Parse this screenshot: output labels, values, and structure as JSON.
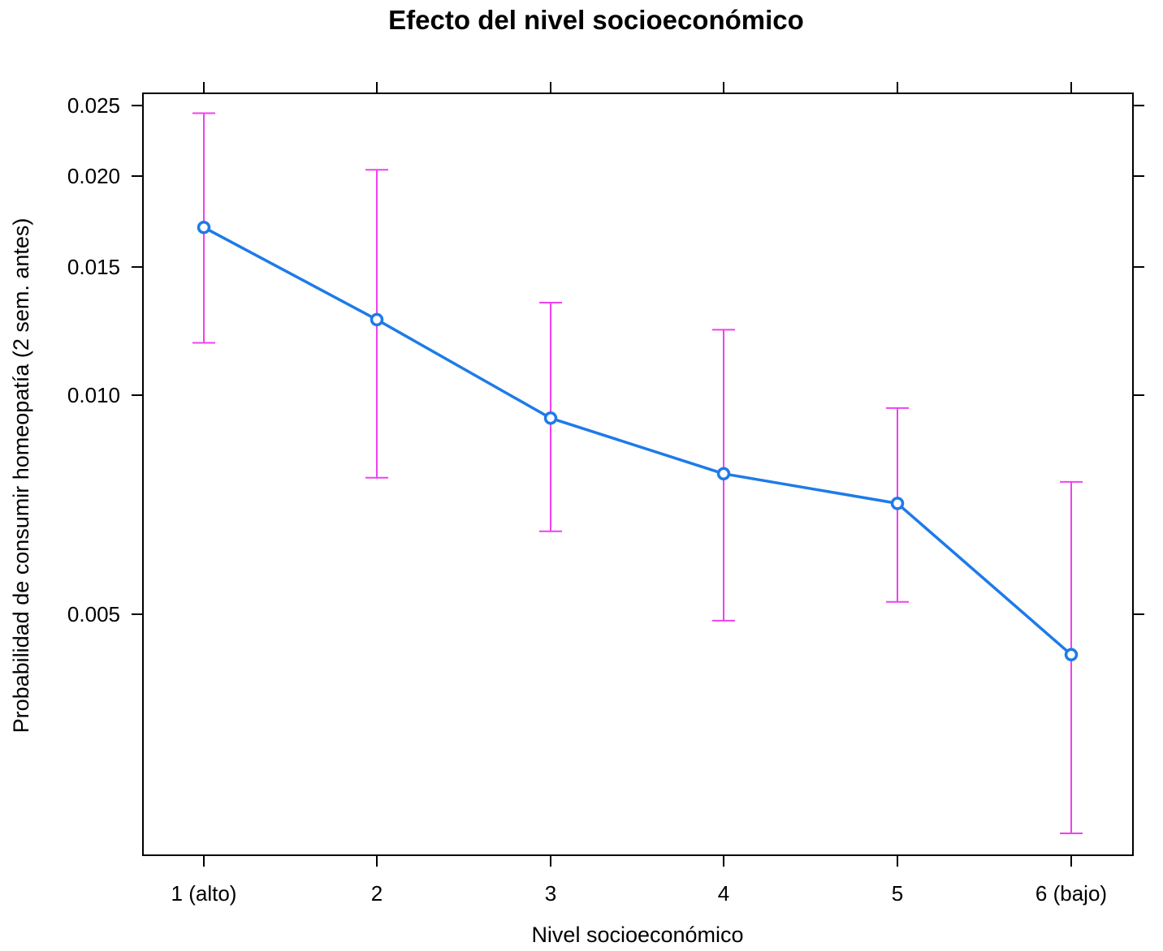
{
  "chart_data": {
    "type": "line",
    "title": "Efecto del nivel socioeconómico",
    "xlabel": "Nivel socioeconómico",
    "ylabel": "Probabilidad de consumir homeopatía (2 sem. antes)",
    "y_scale": "log",
    "grid": false,
    "categories": [
      "1 (alto)",
      "2",
      "3",
      "4",
      "5",
      "6 (bajo)"
    ],
    "y_ticks": [
      0.005,
      0.01,
      0.015,
      0.02,
      0.025
    ],
    "y_tick_labels": [
      "0.005",
      "0.010",
      "0.015",
      "0.020",
      "0.025"
    ],
    "ylim": [
      0.0025,
      0.026
    ],
    "series": [
      {
        "values": [
          0.017,
          0.0127,
          0.0093,
          0.0078,
          0.0071,
          0.0044
        ],
        "lower": [
          0.0118,
          0.0077,
          0.0065,
          0.0049,
          0.0052,
          0.0025
        ],
        "upper": [
          0.0244,
          0.0204,
          0.0134,
          0.0123,
          0.0096,
          0.0076
        ],
        "color": "#1e7be8",
        "error_bar_color": "#f040f0"
      }
    ]
  }
}
